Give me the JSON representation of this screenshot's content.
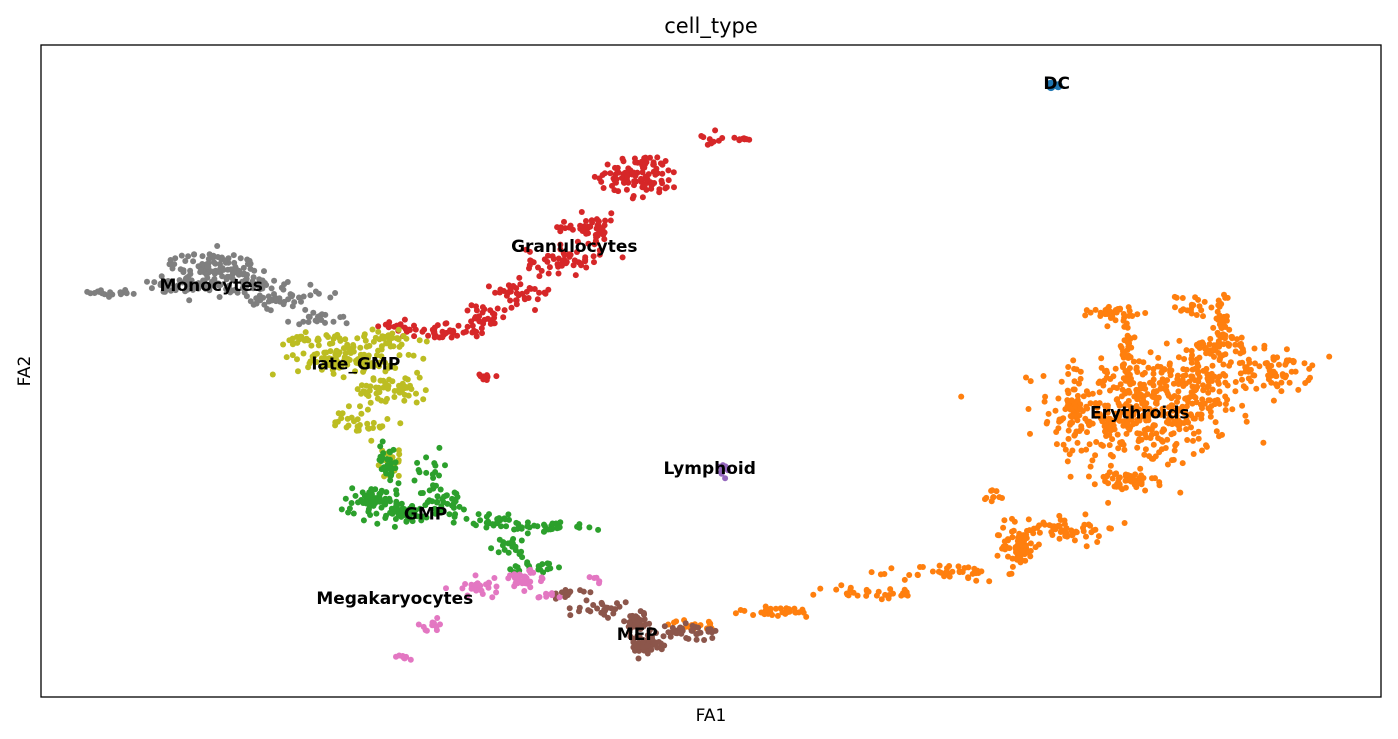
{
  "chart_data": {
    "type": "scatter",
    "title": "cell_type",
    "xlabel": "FA1",
    "ylabel": "FA2",
    "xlim": [
      0,
      100
    ],
    "ylim": [
      0,
      100
    ],
    "grid": false,
    "legend": "on data",
    "series": [
      {
        "name": "DC",
        "color": "#1f77b4",
        "label_pos": [
          75.8,
          94.0
        ],
        "shape": [
          [
            75.3,
            94.0,
            0.4,
            0.6,
            4
          ]
        ]
      },
      {
        "name": "Erythroids",
        "color": "#ff7f0e",
        "label_pos": [
          82.0,
          43.5
        ],
        "shape": [
          [
            82,
            44,
            6,
            8,
            420
          ],
          [
            87,
            48,
            3,
            5,
            80
          ],
          [
            92,
            50,
            2.5,
            3,
            70
          ],
          [
            88,
            54,
            2,
            1.5,
            40
          ],
          [
            80,
            59,
            1.5,
            1,
            30
          ],
          [
            86,
            60,
            1.2,
            1.5,
            20
          ],
          [
            88,
            56,
            0.5,
            6,
            40
          ],
          [
            81,
            52,
            0.6,
            6,
            40
          ],
          [
            77,
            44,
            0.6,
            5,
            40
          ],
          [
            81,
            33,
            2,
            1.5,
            50
          ],
          [
            76,
            26,
            4,
            2,
            60
          ],
          [
            73,
            23,
            1.2,
            2.5,
            60
          ],
          [
            68,
            19,
            3.5,
            1.2,
            40
          ],
          [
            62,
            16,
            3.5,
            1,
            30
          ],
          [
            55,
            13,
            3.5,
            0.8,
            30
          ],
          [
            49,
            11,
            3,
            0.7,
            20
          ],
          [
            71,
            31,
            0.8,
            1,
            10
          ]
        ]
      },
      {
        "name": "Granulocytes",
        "color": "#d62728",
        "label_pos": [
          39.8,
          69.0
        ],
        "shape": [
          [
            45,
            80,
            2.5,
            3,
            80
          ],
          [
            41,
            72,
            2,
            2,
            50
          ],
          [
            39,
            67,
            2.5,
            1.8,
            50
          ],
          [
            36,
            62,
            2,
            1.8,
            40
          ],
          [
            33,
            58,
            1.5,
            1.8,
            30
          ],
          [
            30,
            56,
            2,
            1,
            40
          ],
          [
            27,
            56.5,
            1.5,
            1,
            20
          ],
          [
            50,
            86,
            1,
            1,
            10
          ],
          [
            52.3,
            85.5,
            0.8,
            0.3,
            10
          ],
          [
            33,
            49,
            1,
            0.6,
            10
          ],
          [
            43.5,
            80,
            2,
            2,
            20
          ]
        ]
      },
      {
        "name": "late_GMP",
        "color": "#bcbd22",
        "label_pos": [
          23.5,
          51.0
        ],
        "shape": [
          [
            23,
            52,
            3.5,
            2.5,
            120
          ],
          [
            26,
            47,
            2.5,
            2,
            60
          ],
          [
            24,
            42,
            2,
            2,
            30
          ],
          [
            26,
            36,
            1,
            2,
            20
          ],
          [
            20,
            55,
            2,
            1,
            25
          ],
          [
            26,
            55,
            2,
            1,
            30
          ]
        ]
      },
      {
        "name": "Monocytes",
        "color": "#7f7f7f",
        "label_pos": [
          12.7,
          63.0
        ],
        "shape": [
          [
            13,
            66,
            3,
            2,
            100
          ],
          [
            14,
            63,
            4.5,
            1.5,
            80
          ],
          [
            18,
            61,
            2.5,
            1.5,
            40
          ],
          [
            21,
            58,
            2,
            1,
            20
          ],
          [
            5,
            62,
            1.5,
            0.4,
            20
          ],
          [
            10,
            63.5,
            2,
            1,
            20
          ]
        ]
      },
      {
        "name": "GMP",
        "color": "#2ca02c",
        "label_pos": [
          28.7,
          28.0
        ],
        "shape": [
          [
            25,
            30,
            2.5,
            2,
            70
          ],
          [
            27,
            28,
            2,
            1.5,
            40
          ],
          [
            30,
            30,
            1.5,
            2,
            40
          ],
          [
            26,
            36,
            0.8,
            3,
            30
          ],
          [
            34,
            27,
            2.5,
            1.2,
            30
          ],
          [
            38,
            26,
            2.5,
            0.8,
            30
          ],
          [
            35,
            23,
            1.5,
            1.5,
            20
          ],
          [
            37,
            20,
            2,
            1,
            20
          ],
          [
            29,
            35,
            1,
            2,
            15
          ]
        ]
      },
      {
        "name": "Lymphoid",
        "color": "#9467bd",
        "label_pos": [
          49.9,
          35.0
        ],
        "shape": [
          [
            51.0,
            35.0,
            0.2,
            1.2,
            10
          ]
        ]
      },
      {
        "name": "MEP",
        "color": "#8c564b",
        "label_pos": [
          44.5,
          9.5
        ],
        "shape": [
          [
            45,
            8,
            1.2,
            1.5,
            60
          ],
          [
            44.5,
            11.5,
            1.5,
            1.5,
            40
          ],
          [
            48,
            10,
            1.5,
            1.3,
            30
          ],
          [
            42,
            13.5,
            1.5,
            1,
            25
          ],
          [
            39,
            16,
            1.2,
            0.8,
            15
          ],
          [
            49.5,
            10,
            0.8,
            0.4,
            10
          ]
        ]
      },
      {
        "name": "Megakaryocytes",
        "color": "#e377c2",
        "label_pos": [
          26.4,
          15.0
        ],
        "shape": [
          [
            36,
            18,
            1.5,
            1.3,
            35
          ],
          [
            33,
            17,
            2,
            1.5,
            25
          ],
          [
            29,
            11,
            1,
            1,
            12
          ],
          [
            27,
            6,
            0.6,
            0.5,
            8
          ],
          [
            37.5,
            15.5,
            1,
            0.5,
            8
          ],
          [
            41.5,
            18,
            0.5,
            0.4,
            5
          ]
        ]
      }
    ]
  }
}
